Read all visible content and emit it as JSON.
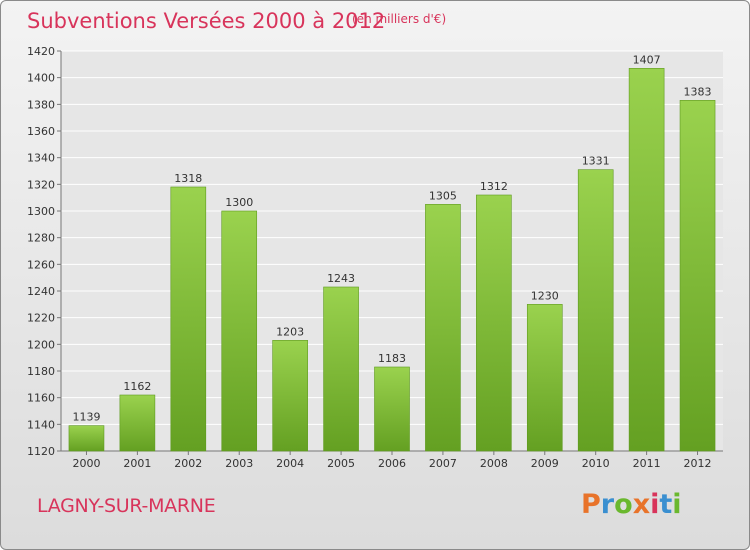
{
  "header": {
    "title": "Subventions Versées 2000 à 2012",
    "subtitle": "(en milliers d'€)"
  },
  "footer": {
    "city": "LAGNY-SUR-MARNE",
    "logo_text": "Proxiti",
    "logo_colors": [
      "#e8732a",
      "#3a8fd0",
      "#6ab82e",
      "#e8732a",
      "#d8345b",
      "#3a8fd0",
      "#6ab82e"
    ]
  },
  "colors": {
    "bar": "#7ec03a",
    "bar_light": "#9ad24e",
    "bar_dark": "#64a022",
    "grid": "#ffffff",
    "title": "#d8345b"
  },
  "chart_data": {
    "type": "bar",
    "title": "Subventions Versées 2000 à 2012",
    "subtitle": "(en milliers d'€)",
    "categories": [
      "2000",
      "2001",
      "2002",
      "2003",
      "2004",
      "2005",
      "2006",
      "2007",
      "2008",
      "2009",
      "2010",
      "2011",
      "2012"
    ],
    "values": [
      1139,
      1162,
      1318,
      1300,
      1203,
      1243,
      1183,
      1305,
      1312,
      1230,
      1331,
      1407,
      1383
    ],
    "ylim": [
      1120,
      1420
    ],
    "yticks": [
      1120,
      1140,
      1160,
      1180,
      1200,
      1220,
      1240,
      1260,
      1280,
      1300,
      1320,
      1340,
      1360,
      1380,
      1400,
      1420
    ],
    "grid": true,
    "xlabel": "",
    "ylabel": ""
  }
}
